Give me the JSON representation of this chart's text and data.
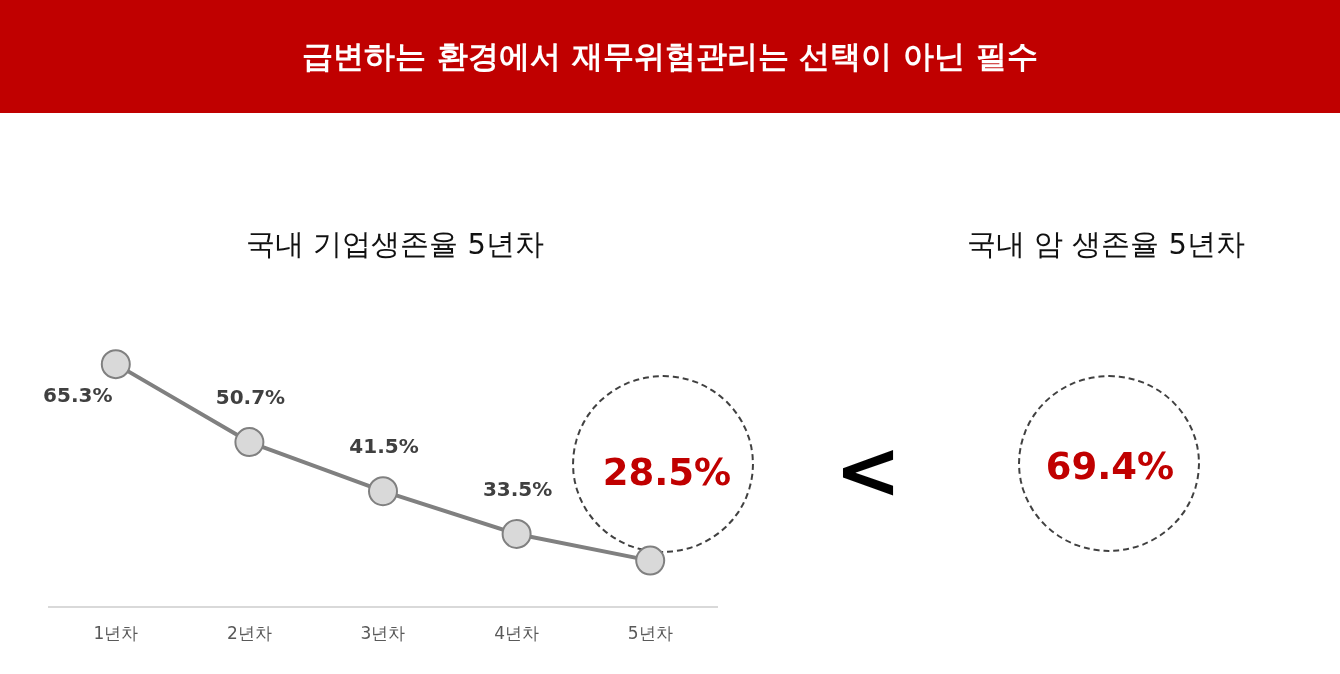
{
  "chart_data": [
    {
      "type": "line",
      "title": "급변하는 환경에서 재무위험관리는 선택이 아닌 필수",
      "subtitle": "국내 기업생존율 5년차",
      "categories": [
        "1년차",
        "2년차",
        "3년차",
        "4년차",
        "5년차"
      ],
      "series": [
        {
          "color": "#808080",
          "values": [
            65.3,
            50.7,
            41.5,
            33.5,
            28.5
          ],
          "value_labels": [
            "65.3%",
            "50.7%",
            "41.5%",
            "33.5%",
            "28.5%"
          ]
        }
      ],
      "marker": "circle",
      "grid": false,
      "legend": false,
      "tick_labels": "x"
    },
    {
      "type": "other",
      "title": "국내 암 생존율 5년차",
      "annotations": [
        "<",
        "69.4%"
      ]
    }
  ]
}
